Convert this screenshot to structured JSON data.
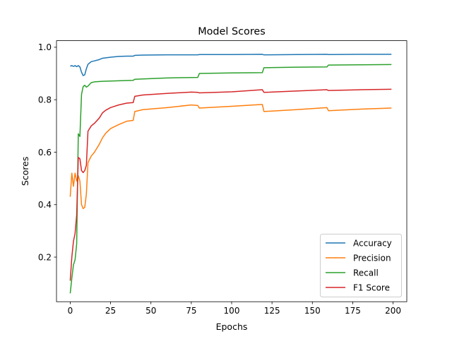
{
  "chart_data": {
    "type": "line",
    "title": "Model Scores",
    "xlabel": "Epochs",
    "ylabel": "Scores",
    "xlim": [
      -8.5,
      208.5
    ],
    "ylim": [
      0.03,
      1.025
    ],
    "xticks": [
      0,
      25,
      50,
      75,
      100,
      125,
      150,
      175,
      200
    ],
    "yticks": [
      0.2,
      0.4,
      0.6,
      0.8,
      1.0
    ],
    "ytick_labels": [
      "0.2",
      "0.4",
      "0.6",
      "0.8",
      "1.0"
    ],
    "grid": false,
    "legend_position": "lower-right",
    "series": [
      {
        "name": "Accuracy",
        "color": "#1f77b4",
        "points": [
          [
            0,
            0.928
          ],
          [
            1,
            0.93
          ],
          [
            2,
            0.927
          ],
          [
            3,
            0.93
          ],
          [
            4,
            0.926
          ],
          [
            5,
            0.93
          ],
          [
            6,
            0.925
          ],
          [
            7,
            0.905
          ],
          [
            8,
            0.892
          ],
          [
            9,
            0.895
          ],
          [
            10,
            0.918
          ],
          [
            11,
            0.935
          ],
          [
            13,
            0.945
          ],
          [
            15,
            0.948
          ],
          [
            18,
            0.953
          ],
          [
            20,
            0.958
          ],
          [
            25,
            0.962
          ],
          [
            30,
            0.965
          ],
          [
            35,
            0.966
          ],
          [
            39,
            0.966
          ],
          [
            40,
            0.969
          ],
          [
            45,
            0.97
          ],
          [
            60,
            0.971
          ],
          [
            79,
            0.971
          ],
          [
            80,
            0.972
          ],
          [
            100,
            0.972
          ],
          [
            119,
            0.973
          ],
          [
            120,
            0.971
          ],
          [
            140,
            0.972
          ],
          [
            159,
            0.973
          ],
          [
            160,
            0.972
          ],
          [
            180,
            0.973
          ],
          [
            199,
            0.973
          ]
        ]
      },
      {
        "name": "Precision",
        "color": "#ff7f0e",
        "points": [
          [
            0,
            0.43
          ],
          [
            1,
            0.52
          ],
          [
            2,
            0.47
          ],
          [
            3,
            0.52
          ],
          [
            4,
            0.49
          ],
          [
            5,
            0.51
          ],
          [
            6,
            0.49
          ],
          [
            7,
            0.4
          ],
          [
            8,
            0.385
          ],
          [
            9,
            0.39
          ],
          [
            10,
            0.44
          ],
          [
            11,
            0.56
          ],
          [
            13,
            0.585
          ],
          [
            15,
            0.6
          ],
          [
            18,
            0.63
          ],
          [
            20,
            0.655
          ],
          [
            22,
            0.672
          ],
          [
            25,
            0.69
          ],
          [
            30,
            0.705
          ],
          [
            35,
            0.718
          ],
          [
            39,
            0.721
          ],
          [
            40,
            0.755
          ],
          [
            45,
            0.762
          ],
          [
            60,
            0.77
          ],
          [
            75,
            0.78
          ],
          [
            79,
            0.778
          ],
          [
            80,
            0.768
          ],
          [
            100,
            0.775
          ],
          [
            119,
            0.782
          ],
          [
            120,
            0.755
          ],
          [
            140,
            0.762
          ],
          [
            159,
            0.77
          ],
          [
            160,
            0.758
          ],
          [
            180,
            0.764
          ],
          [
            199,
            0.768
          ]
        ]
      },
      {
        "name": "Recall",
        "color": "#2ca02c",
        "points": [
          [
            0,
            0.062
          ],
          [
            1,
            0.12
          ],
          [
            2,
            0.17
          ],
          [
            3,
            0.19
          ],
          [
            4,
            0.25
          ],
          [
            5,
            0.67
          ],
          [
            6,
            0.66
          ],
          [
            7,
            0.82
          ],
          [
            8,
            0.85
          ],
          [
            9,
            0.855
          ],
          [
            10,
            0.848
          ],
          [
            11,
            0.852
          ],
          [
            13,
            0.865
          ],
          [
            15,
            0.868
          ],
          [
            20,
            0.87
          ],
          [
            30,
            0.872
          ],
          [
            39,
            0.874
          ],
          [
            40,
            0.878
          ],
          [
            60,
            0.883
          ],
          [
            79,
            0.885
          ],
          [
            80,
            0.9
          ],
          [
            100,
            0.902
          ],
          [
            119,
            0.903
          ],
          [
            120,
            0.922
          ],
          [
            140,
            0.924
          ],
          [
            159,
            0.925
          ],
          [
            160,
            0.932
          ],
          [
            180,
            0.933
          ],
          [
            199,
            0.934
          ]
        ]
      },
      {
        "name": "F1 Score",
        "color": "#d62728",
        "points": [
          [
            0,
            0.11
          ],
          [
            1,
            0.2
          ],
          [
            2,
            0.26
          ],
          [
            3,
            0.29
          ],
          [
            4,
            0.36
          ],
          [
            5,
            0.58
          ],
          [
            6,
            0.575
          ],
          [
            7,
            0.53
          ],
          [
            8,
            0.522
          ],
          [
            9,
            0.53
          ],
          [
            10,
            0.55
          ],
          [
            11,
            0.68
          ],
          [
            13,
            0.7
          ],
          [
            15,
            0.71
          ],
          [
            18,
            0.73
          ],
          [
            20,
            0.75
          ],
          [
            22,
            0.76
          ],
          [
            25,
            0.77
          ],
          [
            30,
            0.78
          ],
          [
            35,
            0.787
          ],
          [
            39,
            0.789
          ],
          [
            40,
            0.813
          ],
          [
            45,
            0.818
          ],
          [
            60,
            0.824
          ],
          [
            75,
            0.829
          ],
          [
            79,
            0.828
          ],
          [
            80,
            0.826
          ],
          [
            100,
            0.83
          ],
          [
            119,
            0.838
          ],
          [
            120,
            0.828
          ],
          [
            140,
            0.833
          ],
          [
            159,
            0.838
          ],
          [
            160,
            0.835
          ],
          [
            180,
            0.838
          ],
          [
            199,
            0.84
          ]
        ]
      }
    ]
  }
}
